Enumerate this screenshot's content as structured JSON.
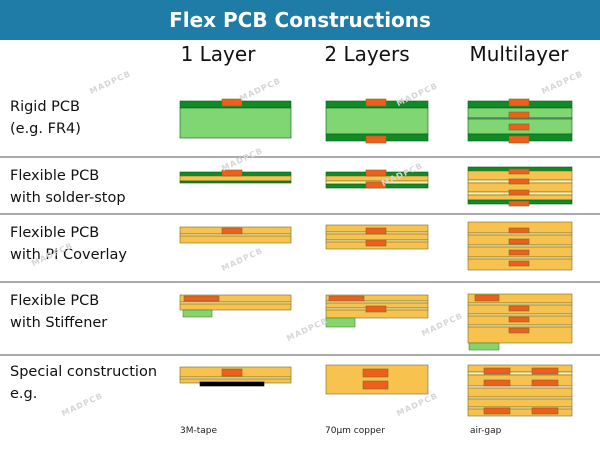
{
  "title": "Flex PCB Constructions",
  "columns": [
    "1 Layer",
    "2 Layers",
    "Multilayer"
  ],
  "rows": [
    [
      "Rigid PCB",
      "(e.g. FR4)"
    ],
    [
      "Flexible PCB",
      "with solder-stop"
    ],
    [
      "Flexible PCB",
      "with PI Coverlay"
    ],
    [
      "Flexible PCB",
      "with Stiffener"
    ],
    [
      "Special construction",
      "e.g."
    ]
  ],
  "footnotes": [
    "3M-tape",
    "70µm copper",
    "air-gap"
  ],
  "watermark": "MADPCB",
  "colors": {
    "banner": "#1e7ca6",
    "rigid_core": "#80d673",
    "soldermask": "#0f8a26",
    "polyimide": "#f7c34e",
    "adhesive": "#fff2a8",
    "copper": "#ee5f1c",
    "stiffener": "#88d36d",
    "tape": "#000000",
    "separator": "#a8aaac"
  }
}
